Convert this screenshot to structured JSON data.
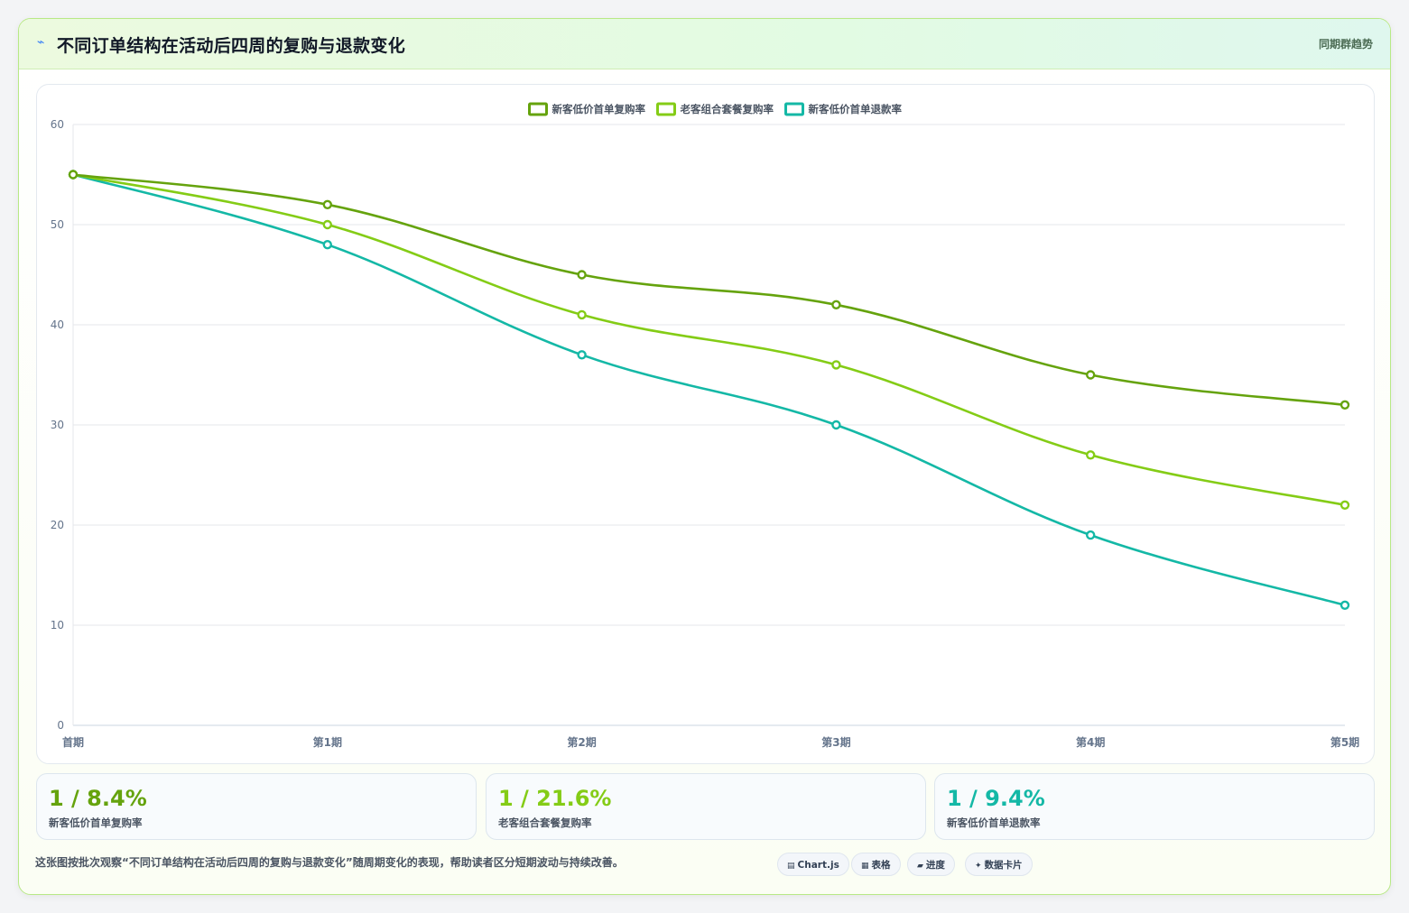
{
  "header": {
    "icon": "bolt-icon",
    "title": "不同订单结构在活动后四周的复购与退款变化",
    "badge": "同期群趋势"
  },
  "chart_data": {
    "type": "line",
    "categories": [
      "首期",
      "第1期",
      "第2期",
      "第3期",
      "第4期",
      "第5期"
    ],
    "series": [
      {
        "name": "新客低价首单复购率",
        "color": "#65a30d",
        "values": [
          55,
          52,
          45,
          42,
          35,
          32
        ]
      },
      {
        "name": "老客组合套餐复购率",
        "color": "#84cc16",
        "values": [
          55,
          50,
          41,
          36,
          27,
          22
        ]
      },
      {
        "name": "新客低价首单退款率",
        "color": "#14b8a6",
        "values": [
          55,
          48,
          37,
          30,
          19,
          12
        ]
      }
    ],
    "ylim": [
      0,
      60
    ],
    "yticks": [
      0,
      10,
      20,
      30,
      40,
      50,
      60
    ],
    "grid": true,
    "legend": "top-center",
    "smooth": true
  },
  "stats": [
    {
      "value": "1 / 8.4%",
      "label": "新客低价首单复购率",
      "color": "#65a30d"
    },
    {
      "value": "1 / 21.6%",
      "label": "老客组合套餐复购率",
      "color": "#84cc16"
    },
    {
      "value": "1 / 9.4%",
      "label": "新客低价首单退款率",
      "color": "#14b8a6"
    }
  ],
  "footer": {
    "note": "这张图按批次观察“不同订单结构在活动后四周的复购与退款变化”随周期变化的表现，帮助读者区分短期波动与持续改善。",
    "chips": [
      {
        "icon": "chart-icon",
        "glyph": "▤",
        "label": "Chart.js"
      },
      {
        "icon": "table-icon",
        "glyph": "▦",
        "label": "表格"
      },
      {
        "icon": "progress-icon",
        "glyph": "▰",
        "label": "进度"
      },
      {
        "icon": "sparkle-icon",
        "glyph": "✦",
        "label": "数据卡片"
      }
    ]
  }
}
